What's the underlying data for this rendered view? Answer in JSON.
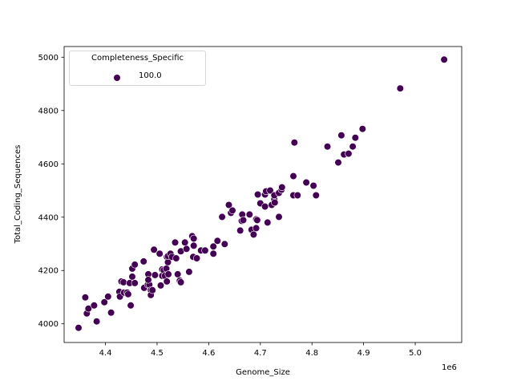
{
  "chart_data": {
    "type": "scatter",
    "title": "",
    "xlabel": "Genome_Size",
    "ylabel": "Total_Coding_Sequences",
    "x_offset_label": "1e6",
    "xlim": [
      4.32,
      5.09
    ],
    "ylim": [
      3930,
      5040
    ],
    "x_ticks": [
      4.4,
      4.5,
      4.6,
      4.7,
      4.8,
      4.9,
      5.0
    ],
    "x_tick_labels": [
      "4.4",
      "4.5",
      "4.6",
      "4.7",
      "4.8",
      "4.9",
      "5.0"
    ],
    "y_ticks": [
      4000,
      4200,
      4400,
      4600,
      4800,
      5000
    ],
    "y_tick_labels": [
      "4000",
      "4200",
      "4400",
      "4600",
      "4800",
      "5000"
    ],
    "grid": false,
    "legend": {
      "position": "upper left",
      "title": "Completeness_Specific",
      "entries": [
        {
          "label": "100.0",
          "color": "#440154"
        }
      ]
    },
    "series": [
      {
        "name": "100.0",
        "color": "#440154",
        "x": [
          4.348,
          4.361,
          4.364,
          4.367,
          4.378,
          4.383,
          4.398,
          4.405,
          4.411,
          4.427,
          4.428,
          4.431,
          4.435,
          4.436,
          4.442,
          4.444,
          4.447,
          4.449,
          4.452,
          4.452,
          4.457,
          4.457,
          4.474,
          4.475,
          4.482,
          4.483,
          4.485,
          4.483,
          4.488,
          4.488,
          4.491,
          4.494,
          4.496,
          4.505,
          4.507,
          4.51,
          4.51,
          4.513,
          4.515,
          4.518,
          4.519,
          4.519,
          4.521,
          4.521,
          4.522,
          4.526,
          4.529,
          4.535,
          4.537,
          4.54,
          4.544,
          4.546,
          4.546,
          4.554,
          4.557,
          4.562,
          4.568,
          4.571,
          4.571,
          4.57,
          4.577,
          4.585,
          4.593,
          4.609,
          4.617,
          4.609,
          4.626,
          4.631,
          4.639,
          4.643,
          4.646,
          4.661,
          4.664,
          4.665,
          4.667,
          4.679,
          4.683,
          4.687,
          4.692,
          4.692,
          4.694,
          4.695,
          4.7,
          4.709,
          4.709,
          4.711,
          4.714,
          4.719,
          4.722,
          4.727,
          4.727,
          4.728,
          4.736,
          4.736,
          4.741,
          4.742,
          4.764,
          4.764,
          4.766,
          4.772,
          4.789,
          4.803,
          4.808,
          4.83,
          4.851,
          4.857,
          4.862,
          4.871,
          4.879,
          4.884,
          4.898,
          4.971,
          5.056
        ],
        "y": [
          3985,
          4099,
          4039,
          4057,
          4069,
          4009,
          4081,
          4102,
          4042,
          4120,
          4102,
          4159,
          4156,
          4117,
          4117,
          4111,
          4153,
          4069,
          4177,
          4207,
          4222,
          4153,
          4234,
          4135,
          4147,
          4186,
          4147,
          4165,
          4126,
          4108,
          4126,
          4278,
          4183,
          4263,
          4144,
          4204,
          4180,
          4201,
          4180,
          4207,
          4251,
          4159,
          4231,
          4254,
          4186,
          4263,
          4251,
          4305,
          4246,
          4186,
          4162,
          4156,
          4272,
          4305,
          4281,
          4195,
          4329,
          4320,
          4293,
          4251,
          4246,
          4275,
          4275,
          4290,
          4311,
          4263,
          4401,
          4299,
          4446,
          4416,
          4425,
          4350,
          4386,
          4410,
          4389,
          4410,
          4353,
          4335,
          4359,
          4392,
          4389,
          4485,
          4452,
          4485,
          4440,
          4497,
          4380,
          4500,
          4446,
          4467,
          4482,
          4455,
          4491,
          4401,
          4503,
          4512,
          4554,
          4482,
          4680,
          4482,
          4530,
          4518,
          4482,
          4665,
          4605,
          4707,
          4635,
          4638,
          4665,
          4698,
          4731,
          4883,
          4991
        ]
      }
    ]
  }
}
